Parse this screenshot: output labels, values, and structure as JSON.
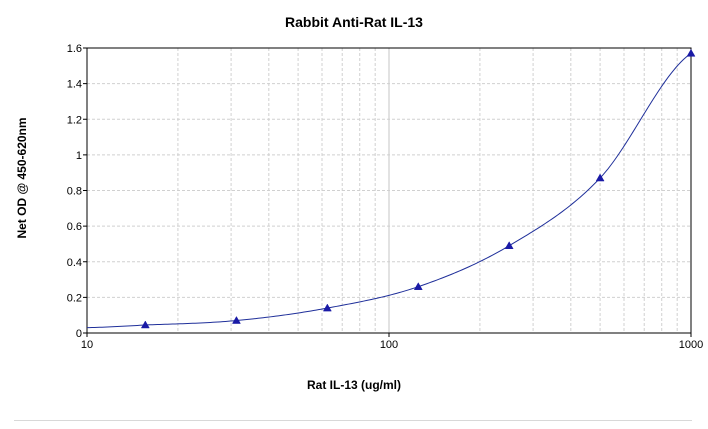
{
  "chart_data": {
    "type": "scatter",
    "title": "Rabbit Anti-Rat IL-13",
    "xlabel": "Rat IL-13 (ug/ml)",
    "ylabel": "Net OD @ 450-620nm",
    "x_scale": "log",
    "xlim": [
      10,
      1000
    ],
    "ylim": [
      0,
      1.6
    ],
    "x_ticks": [
      "10",
      "100",
      "1000"
    ],
    "y_ticks": [
      "0",
      "0.2",
      "0.4",
      "0.6",
      "0.8",
      "1",
      "1.2",
      "1.4",
      "1.6"
    ],
    "grid": true,
    "legend": "none",
    "series": [
      {
        "marker": "triangle",
        "color": "#1a1aa6",
        "x": [
          15.6,
          31.25,
          62.5,
          125,
          250,
          500,
          1000
        ],
        "y": [
          0.045,
          0.07,
          0.14,
          0.26,
          0.49,
          0.87,
          1.57
        ]
      }
    ],
    "fit_line": {
      "color": "#1f2f9a",
      "x": [
        10,
        15.6,
        31.25,
        62.5,
        125,
        250,
        500,
        1000
      ],
      "y": [
        0.03,
        0.045,
        0.07,
        0.14,
        0.26,
        0.49,
        0.87,
        1.57
      ]
    }
  }
}
